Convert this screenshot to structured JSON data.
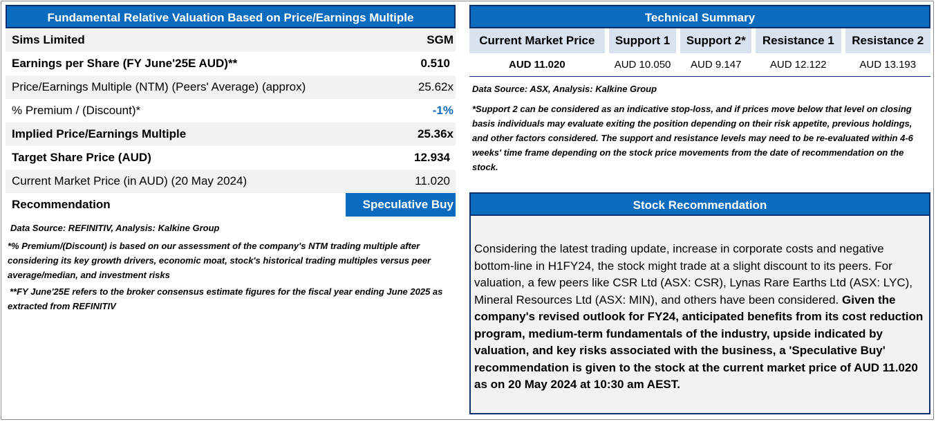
{
  "valuation": {
    "title": "Fundamental Relative Valuation Based on Price/Earnings Multiple",
    "rows": [
      {
        "label": "Sims Limited",
        "value": "SGM"
      },
      {
        "label": "Earnings per Share (FY June'25E AUD)**",
        "value": "0.510"
      },
      {
        "label": "Price/Earnings Multiple (NTM)  (Peers' Average) (approx)",
        "value": "25.62x"
      },
      {
        "label": "% Premium / (Discount)*",
        "value": "-1%"
      },
      {
        "label": "Implied Price/Earnings Multiple",
        "value": "25.36x"
      },
      {
        "label": "Target Share Price (AUD)",
        "value": "12.934"
      },
      {
        "label": "Current Market Price (in AUD) (20 May 2024)",
        "value": "11.020"
      },
      {
        "label": "Recommendation",
        "value": "Speculative Buy"
      }
    ],
    "source": "Data Source: REFINITIV, Analysis: Kalkine Group",
    "note1": "*% Premium/(Discount) is based on our assessment of the company's NTM trading multiple after considering its key growth drivers, economic moat, stock's historical trading multiples versus peer average/median, and investment risks",
    "note2": "**FY June'25E refers to the broker consensus estimate figures for the fiscal year ending June 2025  as extracted from REFINITIV"
  },
  "technical": {
    "title": "Technical Summary",
    "headers": [
      "Current Market Price",
      "Support 1",
      "Support 2*",
      "Resistance 1",
      "Resistance 2"
    ],
    "values": [
      "AUD 11.020",
      "AUD 10.050",
      "AUD 9.147",
      "AUD 12.122",
      "AUD 13.193"
    ],
    "source": "Data Source: ASX, Analysis: Kalkine Group",
    "note": "*Support 2 can be considered as an indicative stop-loss, and if prices move below that level on closing basis individuals may evaluate exiting the position depending on their risk appetite, previous holdings, and other factors considered. The support and resistance levels may need to be re-evaluated within 4-6 weeks' time frame depending on the stock price movements from the date of recommendation on the stock."
  },
  "recommendation": {
    "title": "Stock Recommendation",
    "body_plain": "Considering the latest trading update, increase in corporate costs and negative bottom-line in H1FY24, the stock might trade at a slight discount to its peers. For valuation, a few peers like CSR Ltd (ASX: CSR), Lynas Rare Earths Ltd (ASX: LYC), Mineral Resources Ltd (ASX: MIN), and others have been considered.",
    "body_bold": "Given the company's revised outlook for FY24, anticipated benefits from its cost reduction program, medium-term fundamentals of the industry, upside indicated by valuation, and key risks associated with the business, a 'Speculative Buy' recommendation is given to the stock at the current market price of AUD 11.020 as on 20 May 2024 at 10:30 am AEST."
  }
}
